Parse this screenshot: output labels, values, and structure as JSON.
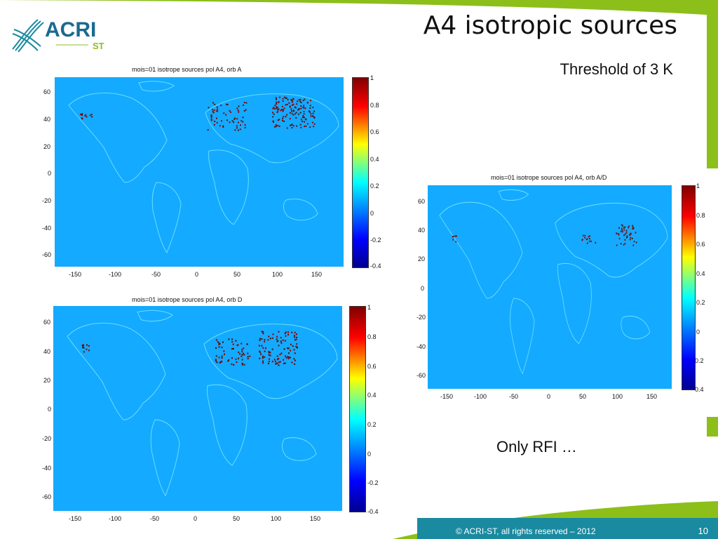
{
  "slide": {
    "title": "A4 isotropic sources",
    "subtitle": "Threshold of 3 K",
    "note": "Only RFI …",
    "copyright": "© ACRI-ST, all rights reserved – 2012",
    "page_number": "10",
    "logo_text": "ACRI",
    "logo_sub": "ST",
    "accent_green": "#8cbf1a",
    "footer_blue": "#1a8aa0"
  },
  "maps": [
    {
      "title": "mois=01 isotrope sources pol A4, orb A"
    },
    {
      "title": "mois=01 isotrope sources pol A4, orb D"
    },
    {
      "title": "mois=01 isotrope sources pol A4, orb A/D"
    }
  ],
  "axes": {
    "yticks": [
      "60",
      "40",
      "20",
      "0",
      "-20",
      "-40",
      "-60"
    ],
    "xticks": [
      "-150",
      "-100",
      "-50",
      "0",
      "50",
      "100",
      "150"
    ],
    "cbticks": [
      "1",
      "0.8",
      "0.6",
      "0.4",
      "0.2",
      "0",
      "-0.2",
      "-0.4"
    ]
  }
}
